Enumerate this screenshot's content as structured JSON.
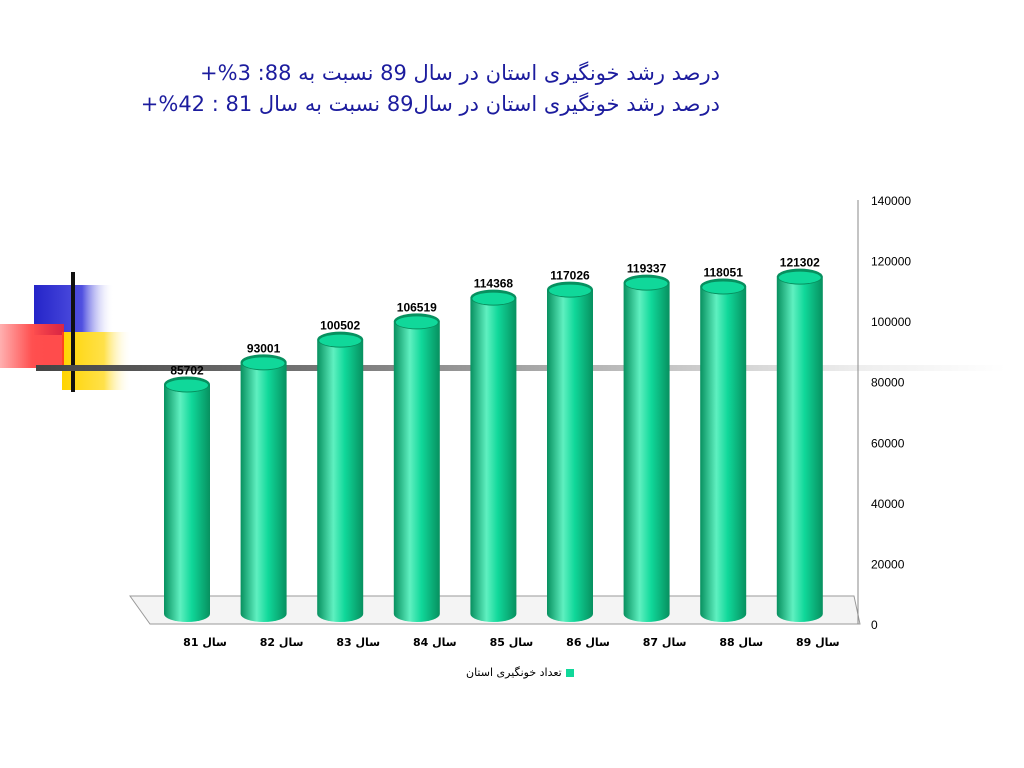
{
  "title": {
    "line1": "درصد رشد خونگیری استان در سال 89 نسبت به 88: 3%+",
    "line2": "درصد رشد خونگیری استان در سال89 نسبت به سال 81 : 42%+"
  },
  "colors": {
    "bar": "#10d89a",
    "bar_dark": "#07905f",
    "bar_light": "#5ff0c0",
    "title": "#1c1c9e"
  },
  "chart_data": {
    "type": "bar",
    "categories": [
      "سال 81",
      "سال 82",
      "سال 83",
      "سال 84",
      "سال 85",
      "سال 86",
      "سال 87",
      "سال 88",
      "سال 89"
    ],
    "series": [
      {
        "name": "تعداد خونگیری استان",
        "values": [
          85702,
          93001,
          100502,
          106519,
          114368,
          117026,
          119337,
          118051,
          121302
        ]
      }
    ],
    "ylim": [
      0,
      140000
    ],
    "yticks": [
      0,
      20000,
      40000,
      60000,
      80000,
      100000,
      120000,
      140000
    ],
    "y_axis_side": "right",
    "legend_position": "bottom",
    "data_labels": true
  }
}
